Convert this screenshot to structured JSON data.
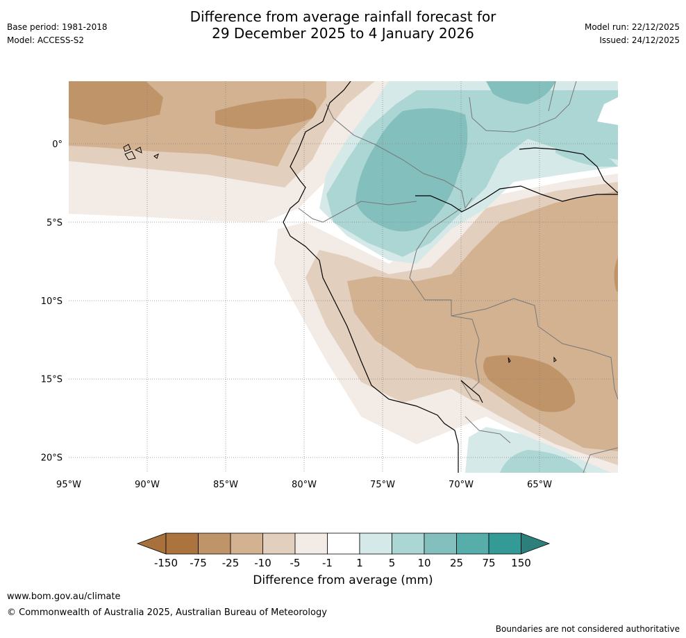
{
  "header": {
    "title_line1": "Difference from average rainfall forecast for",
    "title_line2": "29 December 2025 to 4 January 2026",
    "base_period": "Base period: 1981-2018",
    "model": "Model: ACCESS-S2",
    "model_run": "Model run: 22/12/2025",
    "issued": "Issued: 24/12/2025"
  },
  "map": {
    "lat_labels": [
      "0°",
      "5°S",
      "10°S",
      "15°S",
      "20°S"
    ],
    "lat_values": [
      0,
      -5,
      -10,
      -15,
      -20
    ],
    "lon_labels": [
      "95°W",
      "90°W",
      "85°W",
      "80°W",
      "75°W",
      "70°W",
      "65°W"
    ],
    "lon_values": [
      -95,
      -90,
      -85,
      -80,
      -75,
      -70,
      -65
    ],
    "extent": {
      "lon_min": -95,
      "lon_max": -60,
      "lat_min": -21,
      "lat_max": 4
    }
  },
  "legend": {
    "title": "Difference from average (mm)",
    "tick_labels": [
      "-150",
      "-75",
      "-25",
      "-10",
      "-5",
      "-1",
      "1",
      "5",
      "10",
      "25",
      "75",
      "150"
    ],
    "colors": {
      "below_150": "#a8703b",
      "n150_n75": "#ab743f",
      "n75_n25": "#c09469",
      "n25_n10": "#d2b291",
      "n10_n5": "#e3cfbd",
      "n5_n1": "#f3ebe5",
      "n1_1": "#ffffff",
      "p1_5": "#d5e9e8",
      "p5_10": "#acd6d4",
      "p10_25": "#82bfbd",
      "p25_75": "#57adaa",
      "p75_150": "#339a95",
      "above_150": "#2c7f7b"
    }
  },
  "footer": {
    "url": "www.bom.gov.au/climate",
    "copyright": "© Commonwealth of Australia 2025, Australian Bureau of Meteorology",
    "note": "Boundaries are not considered authoritative"
  }
}
